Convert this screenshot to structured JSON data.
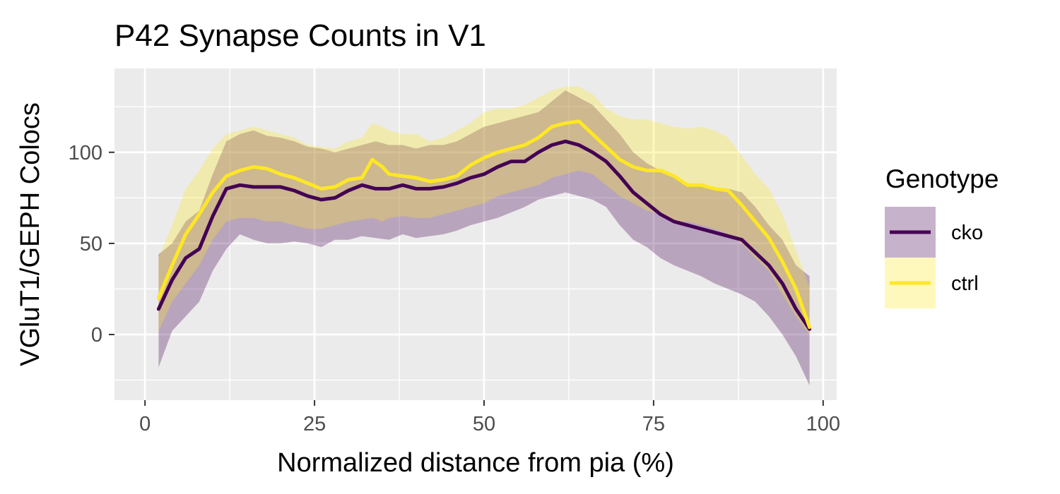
{
  "chart_data": {
    "type": "line",
    "title": "P42 Synapse Counts in V1",
    "xlabel": "Normalized distance from pia (%)",
    "ylabel": "VGluT1/GEPH Colocs",
    "xlim": [
      -4.5,
      102
    ],
    "ylim": [
      -36,
      146
    ],
    "x_ticks": [
      0,
      25,
      50,
      75,
      100
    ],
    "y_ticks": [
      0,
      50,
      100
    ],
    "grid": true,
    "legend": {
      "title": "Genotype",
      "position": "right"
    },
    "series": [
      {
        "name": "cko",
        "color": "#440154",
        "fill": "#440154",
        "x": [
          2,
          4,
          6,
          8,
          10,
          12,
          14,
          16,
          18,
          20,
          22,
          24,
          26,
          28,
          30,
          32,
          34,
          36,
          38,
          40,
          42,
          44,
          46,
          48,
          50,
          52,
          54,
          56,
          58,
          60,
          62,
          64,
          66,
          68,
          70,
          72,
          74,
          76,
          78,
          80,
          82,
          84,
          86,
          88,
          90,
          92,
          94,
          96,
          98
        ],
        "y": [
          14,
          30,
          42,
          47,
          65,
          80,
          82,
          81,
          81,
          81,
          79,
          76,
          74,
          75,
          79,
          82,
          80,
          80,
          82,
          80,
          80,
          81,
          83,
          86,
          88,
          92,
          95,
          95,
          100,
          104,
          106,
          104,
          100,
          95,
          87,
          78,
          72,
          66,
          62,
          60,
          58,
          56,
          54,
          52,
          45,
          38,
          28,
          14,
          3
        ],
        "lower": [
          -18,
          2,
          10,
          18,
          35,
          47,
          55,
          52,
          50,
          50,
          51,
          50,
          48,
          52,
          52,
          54,
          53,
          52,
          55,
          53,
          54,
          55,
          57,
          60,
          62,
          64,
          67,
          70,
          74,
          76,
          78,
          76,
          74,
          70,
          60,
          52,
          48,
          42,
          38,
          35,
          32,
          28,
          25,
          22,
          18,
          10,
          0,
          -12,
          -28
        ],
        "upper": [
          44,
          50,
          62,
          68,
          88,
          106,
          110,
          112,
          109,
          108,
          106,
          103,
          102,
          100,
          102,
          104,
          106,
          104,
          104,
          102,
          104,
          104,
          106,
          110,
          114,
          116,
          118,
          120,
          122,
          128,
          134,
          130,
          126,
          118,
          110,
          100,
          94,
          90,
          86,
          83,
          82,
          80,
          80,
          78,
          70,
          60,
          52,
          38,
          32
        ]
      },
      {
        "name": "ctrl",
        "color": "#FDE725",
        "fill": "#FDE725",
        "x": [
          2,
          4,
          6,
          8,
          10,
          12,
          14,
          16,
          18,
          20,
          22,
          24,
          26,
          28,
          30,
          32,
          33.5,
          35,
          36,
          38,
          40,
          42,
          44,
          46,
          48,
          50,
          52,
          54,
          56,
          58,
          60,
          62,
          64,
          66,
          68,
          70,
          72,
          74,
          76,
          78,
          80,
          82,
          84,
          86,
          88,
          90,
          92,
          94,
          96,
          98
        ],
        "y": [
          20,
          38,
          55,
          66,
          78,
          87,
          90,
          92,
          91,
          88,
          86,
          83,
          80,
          81,
          85,
          86,
          96,
          92,
          88,
          87,
          86,
          84,
          85,
          87,
          93,
          97,
          100,
          102,
          104,
          108,
          114,
          116,
          117,
          110,
          103,
          96,
          92,
          90,
          90,
          87,
          82,
          82,
          80,
          79,
          71,
          62,
          53,
          40,
          25,
          4
        ],
        "lower": [
          2,
          18,
          28,
          38,
          52,
          62,
          64,
          64,
          62,
          62,
          60,
          58,
          58,
          60,
          62,
          63,
          64,
          62,
          64,
          65,
          64,
          64,
          66,
          68,
          70,
          72,
          76,
          78,
          80,
          82,
          86,
          88,
          90,
          88,
          82,
          76,
          72,
          68,
          66,
          62,
          62,
          60,
          58,
          55,
          50,
          42,
          35,
          22,
          10,
          0
        ],
        "upper": [
          42,
          60,
          80,
          90,
          102,
          110,
          112,
          114,
          112,
          110,
          108,
          104,
          103,
          102,
          106,
          108,
          116,
          114,
          112,
          110,
          110,
          106,
          108,
          112,
          116,
          122,
          124,
          124,
          126,
          130,
          134,
          136,
          136,
          132,
          124,
          120,
          118,
          118,
          116,
          114,
          113,
          114,
          112,
          108,
          98,
          88,
          80,
          66,
          46,
          26
        ]
      }
    ]
  }
}
